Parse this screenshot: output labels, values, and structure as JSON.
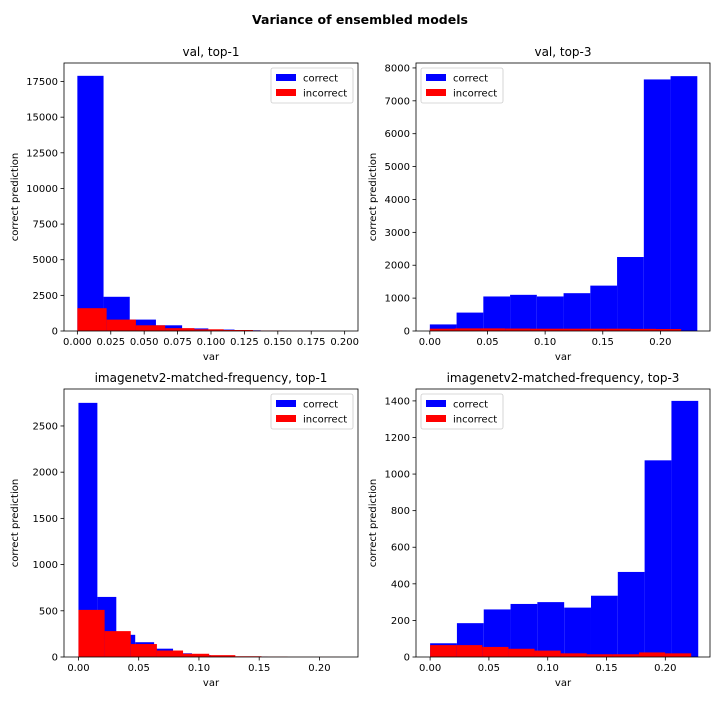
{
  "figure": {
    "suptitle": "Variance of ensembled models"
  },
  "colors": {
    "correct": "#0000ff",
    "incorrect": "#ff0000",
    "axis": "#000000",
    "background": "#ffffff"
  },
  "chart_data": [
    {
      "type": "bar",
      "title": "val, top-1",
      "xlabel": "var",
      "ylabel": "correct prediction",
      "xlim": [
        -0.01,
        0.21
      ],
      "ylim": [
        0,
        18800
      ],
      "xticks": [
        0.0,
        0.025,
        0.05,
        0.075,
        0.1,
        0.125,
        0.15,
        0.175,
        0.2
      ],
      "xtick_labels": [
        "0.000",
        "0.025",
        "0.050",
        "0.075",
        "0.100",
        "0.125",
        "0.150",
        "0.175",
        "0.200"
      ],
      "yticks": [
        0,
        2500,
        5000,
        7500,
        10000,
        12500,
        15000,
        17500
      ],
      "ytick_labels": [
        "0",
        "2500",
        "5000",
        "7500",
        "10000",
        "12500",
        "15000",
        "17500"
      ],
      "legend": {
        "position": "upper-right",
        "entries": [
          "correct",
          "incorrect"
        ]
      },
      "series": [
        {
          "name": "correct",
          "color": "#0000ff",
          "bins": [
            0.0,
            0.0196,
            0.0392,
            0.0588,
            0.0784,
            0.098,
            0.1176,
            0.1372,
            0.1568,
            0.1764,
            0.196
          ],
          "values": [
            17900,
            2400,
            800,
            400,
            180,
            100,
            50,
            20,
            10,
            5
          ]
        },
        {
          "name": "incorrect",
          "color": "#ff0000",
          "bins": [
            0.0,
            0.0219,
            0.0438,
            0.0657,
            0.0876,
            0.1095,
            0.1314,
            0.1533,
            0.1752,
            0.1971,
            0.219
          ],
          "values": [
            1600,
            800,
            400,
            200,
            120,
            70,
            30,
            10,
            5,
            2
          ]
        }
      ]
    },
    {
      "type": "bar",
      "title": "val, top-3",
      "xlabel": "var",
      "ylabel": "correct prediction",
      "xlim": [
        -0.012,
        0.243
      ],
      "ylim": [
        0,
        8150
      ],
      "xticks": [
        0.0,
        0.05,
        0.1,
        0.15,
        0.2
      ],
      "xtick_labels": [
        "0.00",
        "0.05",
        "0.10",
        "0.15",
        "0.20"
      ],
      "yticks": [
        0,
        1000,
        2000,
        3000,
        4000,
        5000,
        6000,
        7000,
        8000
      ],
      "ytick_labels": [
        "0",
        "1000",
        "2000",
        "3000",
        "4000",
        "5000",
        "6000",
        "7000",
        "8000"
      ],
      "legend": {
        "position": "upper-left",
        "entries": [
          "correct",
          "incorrect"
        ]
      },
      "series": [
        {
          "name": "correct",
          "color": "#0000ff",
          "bins": [
            0.0,
            0.0232,
            0.0464,
            0.0696,
            0.0928,
            0.116,
            0.1392,
            0.1624,
            0.1856,
            0.2088,
            0.232
          ],
          "values": [
            200,
            560,
            1050,
            1100,
            1050,
            1150,
            1380,
            2250,
            7650,
            7750
          ]
        },
        {
          "name": "incorrect",
          "color": "#ff0000",
          "bins": [
            0.0,
            0.0218,
            0.0436,
            0.0654,
            0.0872,
            0.109,
            0.1308,
            0.1526,
            0.1744,
            0.1962,
            0.218
          ],
          "values": [
            70,
            80,
            80,
            75,
            70,
            70,
            70,
            70,
            65,
            60
          ]
        }
      ]
    },
    {
      "type": "bar",
      "title": "imagenetv2-matched-frequency, top-1",
      "xlabel": "var",
      "ylabel": "correct prediction",
      "xlim": [
        -0.012,
        0.232
      ],
      "ylim": [
        0,
        2900
      ],
      "xticks": [
        0.0,
        0.05,
        0.1,
        0.15,
        0.2
      ],
      "xtick_labels": [
        "0.00",
        "0.05",
        "0.10",
        "0.15",
        "0.20"
      ],
      "yticks": [
        0,
        500,
        1000,
        1500,
        2000,
        2500
      ],
      "ytick_labels": [
        "0",
        "500",
        "1000",
        "1500",
        "2000",
        "2500"
      ],
      "legend": {
        "position": "upper-right",
        "entries": [
          "correct",
          "incorrect"
        ]
      },
      "series": [
        {
          "name": "correct",
          "color": "#0000ff",
          "bins": [
            0.0,
            0.0157,
            0.0314,
            0.0471,
            0.0628,
            0.0785,
            0.0942,
            0.1099,
            0.1256,
            0.1413,
            0.157
          ],
          "values": [
            2750,
            650,
            240,
            160,
            90,
            40,
            20,
            10,
            5,
            3
          ]
        },
        {
          "name": "incorrect",
          "color": "#ff0000",
          "bins": [
            0.0,
            0.0217,
            0.0434,
            0.0651,
            0.0868,
            0.1085,
            0.1302,
            0.1519,
            0.1736,
            0.1953,
            0.217
          ],
          "values": [
            510,
            280,
            140,
            70,
            35,
            20,
            8,
            3,
            1,
            1
          ]
        }
      ]
    },
    {
      "type": "bar",
      "title": "imagenetv2-matched-frequency, top-3",
      "xlabel": "var",
      "ylabel": "correct prediction",
      "xlim": [
        -0.012,
        0.238
      ],
      "ylim": [
        0,
        1465
      ],
      "xticks": [
        0.0,
        0.05,
        0.1,
        0.15,
        0.2
      ],
      "xtick_labels": [
        "0.00",
        "0.05",
        "0.10",
        "0.15",
        "0.20"
      ],
      "yticks": [
        0,
        200,
        400,
        600,
        800,
        1000,
        1200,
        1400
      ],
      "ytick_labels": [
        "0",
        "200",
        "400",
        "600",
        "800",
        "1000",
        "1200",
        "1400"
      ],
      "legend": {
        "position": "upper-left",
        "entries": [
          "correct",
          "incorrect"
        ]
      },
      "series": [
        {
          "name": "correct",
          "color": "#0000ff",
          "bins": [
            0.0,
            0.0228,
            0.0456,
            0.0684,
            0.0912,
            0.114,
            0.1368,
            0.1596,
            0.1824,
            0.2052,
            0.228
          ],
          "values": [
            75,
            185,
            260,
            290,
            300,
            270,
            335,
            465,
            1075,
            1400
          ]
        },
        {
          "name": "incorrect",
          "color": "#ff0000",
          "bins": [
            0.0,
            0.0222,
            0.0444,
            0.0666,
            0.0888,
            0.111,
            0.1332,
            0.1554,
            0.1776,
            0.1998,
            0.222
          ],
          "values": [
            65,
            65,
            55,
            45,
            35,
            20,
            15,
            15,
            25,
            20
          ]
        }
      ]
    }
  ]
}
